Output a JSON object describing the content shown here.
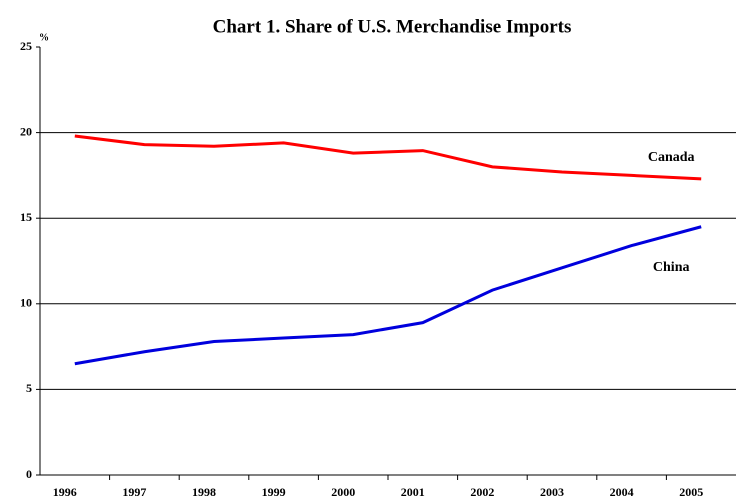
{
  "chart_data": {
    "type": "line",
    "title": "Chart 1. Share of U.S. Merchandise Imports",
    "y_label": "%",
    "categories": [
      "1996",
      "1997",
      "1998",
      "1999",
      "2000",
      "2001",
      "2002",
      "2003",
      "2004",
      "2005"
    ],
    "series": [
      {
        "name": "Canada",
        "color": "#ff0000",
        "values": [
          19.8,
          19.3,
          19.2,
          19.4,
          18.8,
          18.95,
          18.0,
          17.7,
          17.5,
          17.3
        ]
      },
      {
        "name": "China",
        "color": "#0000dd",
        "values": [
          6.5,
          7.2,
          7.8,
          8.0,
          8.2,
          8.9,
          10.8,
          12.1,
          13.4,
          14.5
        ]
      }
    ],
    "ylim": [
      0,
      25
    ],
    "yticks": [
      0,
      5,
      10,
      15,
      20,
      25
    ],
    "grid": true
  }
}
